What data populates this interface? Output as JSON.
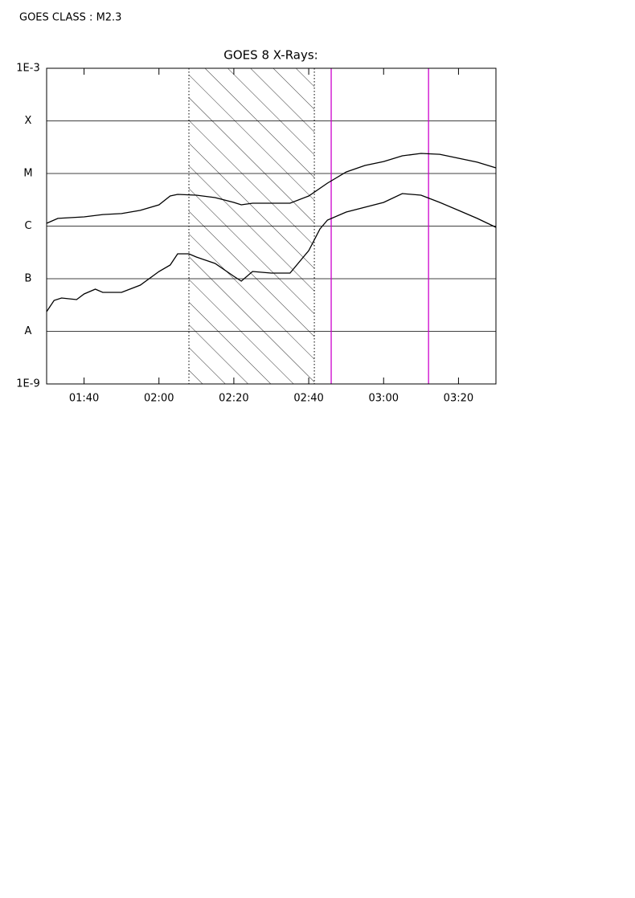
{
  "header": {
    "goes_class": "GOES CLASS : M2.3"
  },
  "chart_data": {
    "type": "line",
    "title": "GOES 8 X-Rays:",
    "ylog": true,
    "grid": true,
    "xlim": [
      90,
      210
    ],
    "xticks": [
      {
        "value": 100,
        "label": "01:40"
      },
      {
        "value": 120,
        "label": "02:00"
      },
      {
        "value": 140,
        "label": "02:20"
      },
      {
        "value": 160,
        "label": "02:40"
      },
      {
        "value": 180,
        "label": "03:00"
      },
      {
        "value": 200,
        "label": "03:20"
      }
    ],
    "ylim": [
      1e-09,
      0.001
    ],
    "yticks": [
      {
        "value": 1e-09,
        "label": "1E-9"
      },
      {
        "value": 1e-08,
        "label": "A"
      },
      {
        "value": 1e-07,
        "label": "B"
      },
      {
        "value": 1e-06,
        "label": "C"
      },
      {
        "value": 1e-05,
        "label": "M"
      },
      {
        "value": 0.0001,
        "label": "X"
      },
      {
        "value": 0.001,
        "label": "1E-3"
      }
    ],
    "shaded_range": [
      128,
      161.5
    ],
    "markers": [
      166,
      192
    ],
    "marker_color": "#cc00cc",
    "series": [
      {
        "color": "#000000",
        "x": [
          90,
          93,
          100,
          105,
          110,
          115,
          120,
          123,
          125,
          130,
          135,
          140,
          142,
          145,
          150,
          155,
          160,
          165,
          170,
          175,
          180,
          185,
          190,
          195,
          200,
          205,
          210
        ],
        "values": [
          1.13e-06,
          1.4e-06,
          1.5e-06,
          1.66e-06,
          1.73e-06,
          1.99e-06,
          2.54e-06,
          3.74e-06,
          4.01e-06,
          3.87e-06,
          3.48e-06,
          2.82e-06,
          2.54e-06,
          2.72e-06,
          2.72e-06,
          2.72e-06,
          3.74e-06,
          6.56e-06,
          1.07e-05,
          1.42e-05,
          1.69e-05,
          2.17e-05,
          2.41e-05,
          2.32e-05,
          1.95e-05,
          1.64e-05,
          1.28e-05
        ]
      },
      {
        "color": "#000000",
        "x": [
          90,
          92,
          94,
          98,
          100,
          103,
          105,
          110,
          115,
          120,
          123,
          125,
          128,
          130,
          135,
          140,
          142,
          145,
          150,
          155,
          160,
          163,
          165,
          170,
          180,
          185,
          190,
          195,
          200,
          205,
          210
        ],
        "values": [
          2.37e-08,
          3.87e-08,
          4.3e-08,
          4.01e-08,
          5.13e-08,
          6.34e-08,
          5.5e-08,
          5.5e-08,
          7.55e-08,
          1.37e-07,
          1.82e-07,
          2.97e-07,
          2.97e-07,
          2.58e-07,
          1.95e-07,
          1.11e-07,
          9e-08,
          1.37e-07,
          1.28e-07,
          1.28e-07,
          3.42e-07,
          8.85e-07,
          1.3e-06,
          1.85e-06,
          2.82e-06,
          4.15e-06,
          3.87e-06,
          2.82e-06,
          1.99e-06,
          1.4e-06,
          9.48e-07
        ]
      }
    ]
  }
}
